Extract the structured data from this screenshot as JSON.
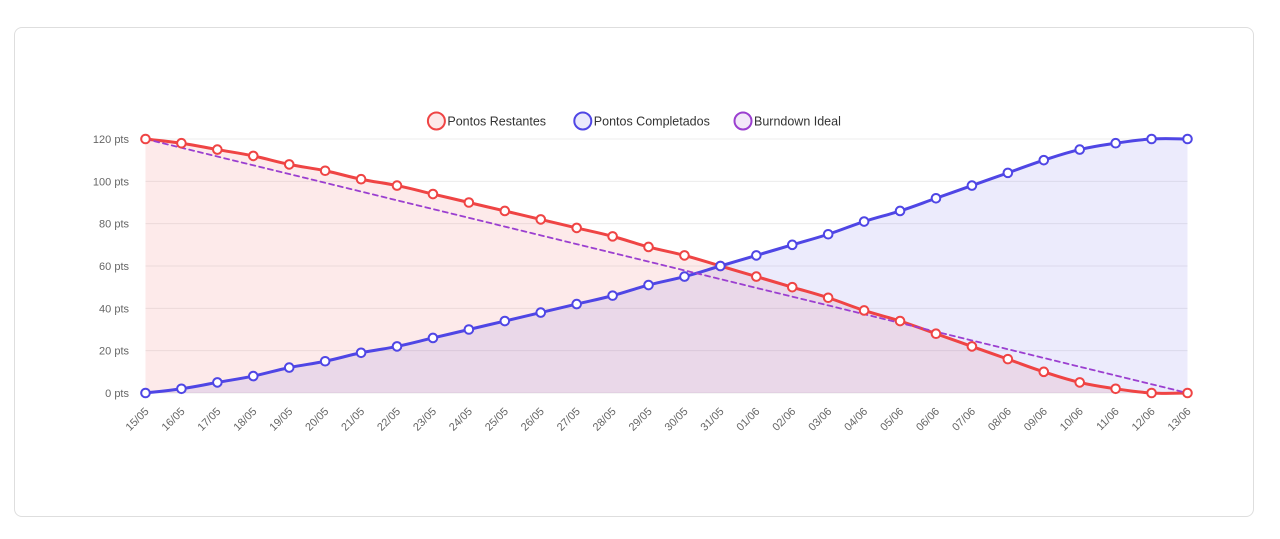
{
  "chart_data": {
    "type": "line",
    "title": "",
    "xlabel": "",
    "ylabel": "",
    "y_unit_suffix": " pts",
    "ylim": [
      0,
      120
    ],
    "y_ticks": [
      0,
      20,
      40,
      60,
      80,
      100,
      120
    ],
    "grid": true,
    "legend_position": "top-center",
    "categories": [
      "15/05",
      "16/05",
      "17/05",
      "18/05",
      "19/05",
      "20/05",
      "21/05",
      "22/05",
      "23/05",
      "24/05",
      "25/05",
      "26/05",
      "27/05",
      "28/05",
      "29/05",
      "30/05",
      "31/05",
      "01/06",
      "02/06",
      "03/06",
      "04/06",
      "05/06",
      "06/06",
      "07/06",
      "08/06",
      "09/06",
      "10/06",
      "11/06",
      "12/06",
      "13/06"
    ],
    "series": [
      {
        "name": "Pontos Restantes",
        "color": "#ef4444",
        "fill": true,
        "dashed": false,
        "values": [
          120,
          118,
          115,
          112,
          108,
          105,
          101,
          98,
          94,
          90,
          86,
          82,
          78,
          74,
          69,
          65,
          60,
          55,
          50,
          45,
          39,
          34,
          28,
          22,
          16,
          10,
          5,
          2,
          0,
          0
        ]
      },
      {
        "name": "Pontos Completados",
        "color": "#4f46e5",
        "fill": true,
        "dashed": false,
        "values": [
          0,
          2,
          5,
          8,
          12,
          15,
          19,
          22,
          26,
          30,
          34,
          38,
          42,
          46,
          51,
          55,
          60,
          65,
          70,
          75,
          81,
          86,
          92,
          98,
          104,
          110,
          115,
          118,
          120,
          120
        ]
      },
      {
        "name": "Burndown Ideal",
        "color": "#9b3fd0",
        "fill": false,
        "dashed": true,
        "values": [
          120,
          115.86,
          111.72,
          107.59,
          103.45,
          99.31,
          95.17,
          91.03,
          86.9,
          82.76,
          78.62,
          74.48,
          70.34,
          66.21,
          62.07,
          57.93,
          53.79,
          49.66,
          45.52,
          41.38,
          37.24,
          33.1,
          28.97,
          24.83,
          20.69,
          16.55,
          12.41,
          8.28,
          4.14,
          0
        ]
      }
    ]
  }
}
